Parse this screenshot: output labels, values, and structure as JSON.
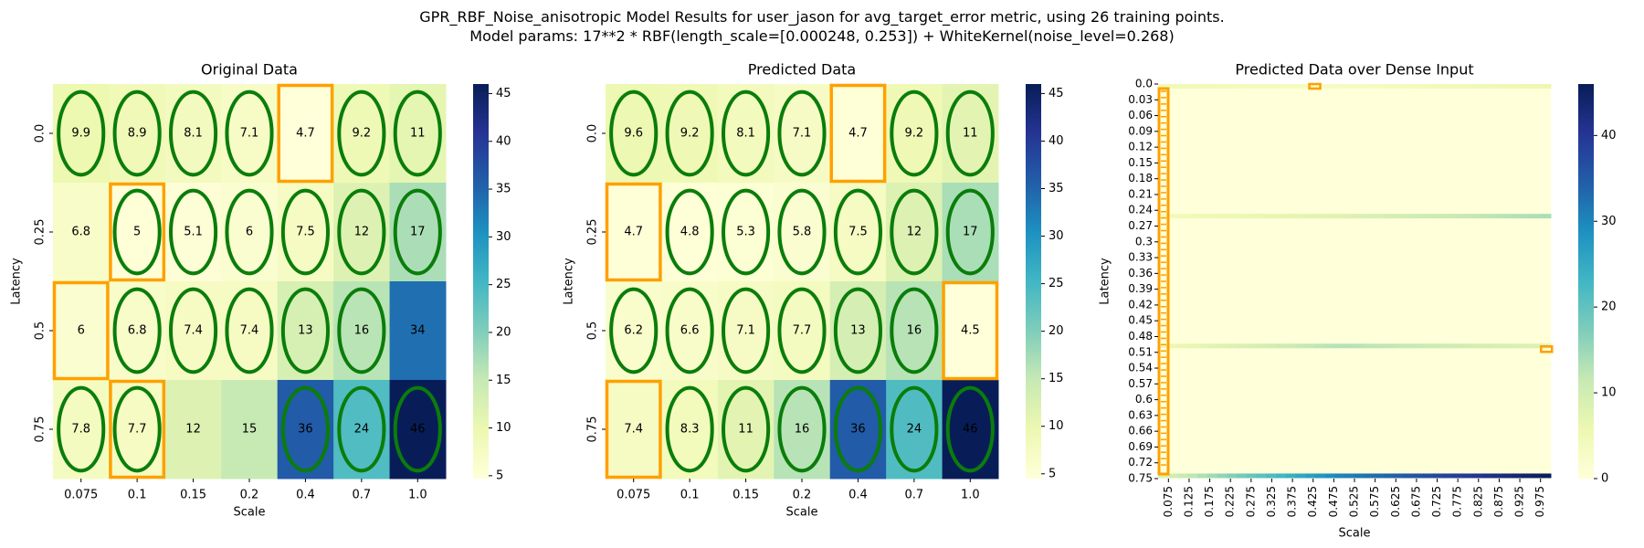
{
  "figure": {
    "title_line1": "GPR_RBF_Noise_anisotropic Model Results for user_jason for avg_target_error metric, using 26 training points.",
    "title_line2": "Model params: 17**2 * RBF(length_scale=[0.000248, 0.253]) + WhiteKernel(noise_level=0.268)"
  },
  "chart_data": [
    {
      "type": "heatmap",
      "title": "Original Data",
      "xlabel": "Scale",
      "ylabel": "Latency",
      "x_ticks": [
        "0.075",
        "0.1",
        "0.15",
        "0.2",
        "0.4",
        "0.7",
        "1.0"
      ],
      "y_ticks": [
        "0.0",
        "0.25",
        "0.5",
        "0.75"
      ],
      "values": [
        [
          9.9,
          8.9,
          8.1,
          7.1,
          4.7,
          9.2,
          11
        ],
        [
          6.8,
          5,
          5.1,
          6,
          7.5,
          12,
          17
        ],
        [
          6,
          6.8,
          7.4,
          7.4,
          13,
          16,
          34
        ],
        [
          7.8,
          7.7,
          12,
          15,
          36,
          24,
          46
        ]
      ],
      "cell_labels": [
        [
          "9.9",
          "8.9",
          "8.1",
          "7.1",
          "4.7",
          "9.2",
          "11"
        ],
        [
          "6.8",
          "5",
          "5.1",
          "6",
          "7.5",
          "12",
          "17"
        ],
        [
          "6",
          "6.8",
          "7.4",
          "7.4",
          "13",
          "16",
          "34"
        ],
        [
          "7.8",
          "7.7",
          "12",
          "15",
          "36",
          "24",
          "46"
        ]
      ],
      "green_ellipses": [
        [
          true,
          true,
          true,
          true,
          false,
          true,
          true
        ],
        [
          false,
          true,
          true,
          true,
          true,
          true,
          true
        ],
        [
          false,
          true,
          true,
          true,
          true,
          true,
          false
        ],
        [
          true,
          true,
          false,
          false,
          true,
          true,
          true
        ]
      ],
      "orange_boxes": [
        [
          0,
          4
        ],
        [
          1,
          1
        ],
        [
          2,
          0
        ],
        [
          3,
          1
        ]
      ],
      "colorbar_ticks": [
        5,
        10,
        15,
        20,
        25,
        30,
        35,
        40,
        45
      ],
      "vmin": 4.7,
      "vmax": 46,
      "colormap": "YlGnBu"
    },
    {
      "type": "heatmap",
      "title": "Predicted Data",
      "xlabel": "Scale",
      "ylabel": "Latency",
      "x_ticks": [
        "0.075",
        "0.1",
        "0.15",
        "0.2",
        "0.4",
        "0.7",
        "1.0"
      ],
      "y_ticks": [
        "0.0",
        "0.25",
        "0.5",
        "0.75"
      ],
      "values": [
        [
          9.6,
          9.2,
          8.1,
          7.1,
          4.7,
          9.2,
          11
        ],
        [
          4.7,
          4.8,
          5.3,
          5.8,
          7.5,
          12,
          17
        ],
        [
          6.2,
          6.6,
          7.1,
          7.7,
          13,
          16,
          4.5
        ],
        [
          7.4,
          8.3,
          11,
          16,
          36,
          24,
          46
        ]
      ],
      "cell_labels": [
        [
          "9.6",
          "9.2",
          "8.1",
          "7.1",
          "4.7",
          "9.2",
          "11"
        ],
        [
          "4.7",
          "4.8",
          "5.3",
          "5.8",
          "7.5",
          "12",
          "17"
        ],
        [
          "6.2",
          "6.6",
          "7.1",
          "7.7",
          "13",
          "16",
          "4.5"
        ],
        [
          "7.4",
          "8.3",
          "11",
          "16",
          "36",
          "24",
          "46"
        ]
      ],
      "green_ellipses": [
        [
          true,
          true,
          true,
          true,
          false,
          true,
          true
        ],
        [
          false,
          true,
          true,
          true,
          true,
          true,
          true
        ],
        [
          true,
          true,
          true,
          true,
          true,
          true,
          false
        ],
        [
          false,
          true,
          true,
          true,
          true,
          true,
          true
        ]
      ],
      "orange_boxes": [
        [
          0,
          4
        ],
        [
          1,
          0
        ],
        [
          2,
          6
        ],
        [
          3,
          0
        ]
      ],
      "colorbar_ticks": [
        5,
        10,
        15,
        20,
        25,
        30,
        35,
        40,
        45
      ],
      "vmin": 4.5,
      "vmax": 46,
      "colormap": "YlGnBu"
    },
    {
      "type": "heatmap",
      "title": "Predicted Data over Dense Input",
      "xlabel": "Scale",
      "ylabel": "Latency",
      "x_ticks": [
        "0.075",
        "0.125",
        "0.175",
        "0.225",
        "0.275",
        "0.325",
        "0.375",
        "0.425",
        "0.475",
        "0.525",
        "0.575",
        "0.625",
        "0.675",
        "0.725",
        "0.775",
        "0.825",
        "0.875",
        "0.925",
        "0.975"
      ],
      "y_ticks": [
        "0.0",
        "0.03",
        "0.06",
        "0.09",
        "0.12",
        "0.15",
        "0.18",
        "0.21",
        "0.24",
        "0.27",
        "0.3",
        "0.33",
        "0.36",
        "0.39",
        "0.42",
        "0.45",
        "0.48",
        "0.51",
        "0.54",
        "0.57",
        "0.6",
        "0.63",
        "0.66",
        "0.69",
        "0.72",
        "0.75"
      ],
      "dense_rows": [
        {
          "latency": 0.0,
          "values_at_scale": {
            "0.075": 5,
            "0.5": 3,
            "1.0": 6
          }
        },
        {
          "latency": 0.25,
          "values_at_scale": {
            "0.075": 4,
            "0.5": 8,
            "1.0": 14
          }
        },
        {
          "latency": 0.5,
          "values_at_scale": {
            "0.075": 5,
            "0.5": 13,
            "1.0": 8
          }
        },
        {
          "latency": 0.75,
          "values_at_scale": {
            "0.075": 8,
            "0.5": 30,
            "1.0": 46
          }
        }
      ],
      "background_value": 0,
      "colorbar_ticks": [
        0,
        10,
        20,
        30,
        40
      ],
      "vmin": 0,
      "vmax": 46,
      "colormap": "YlGnBu"
    }
  ]
}
